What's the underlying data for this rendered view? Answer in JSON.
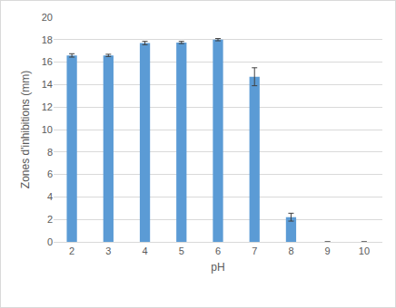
{
  "chart_data": {
    "type": "bar",
    "x_label": "pH",
    "y_label": "Zones d'inhibitions (mm)",
    "categories": [
      "2",
      "3",
      "4",
      "5",
      "6",
      "7",
      "8",
      "9",
      "10"
    ],
    "values": [
      16.6,
      16.6,
      17.7,
      17.75,
      18.0,
      14.7,
      2.2,
      0,
      0
    ],
    "errors": [
      0.15,
      0.1,
      0.15,
      0.1,
      0.1,
      0.8,
      0.35,
      0,
      0
    ],
    "color": "#5b9bd5",
    "ylim": [
      0,
      20
    ],
    "yticks": [
      0,
      2,
      4,
      6,
      8,
      10,
      12,
      14,
      16,
      18,
      20
    ],
    "grid": true
  }
}
